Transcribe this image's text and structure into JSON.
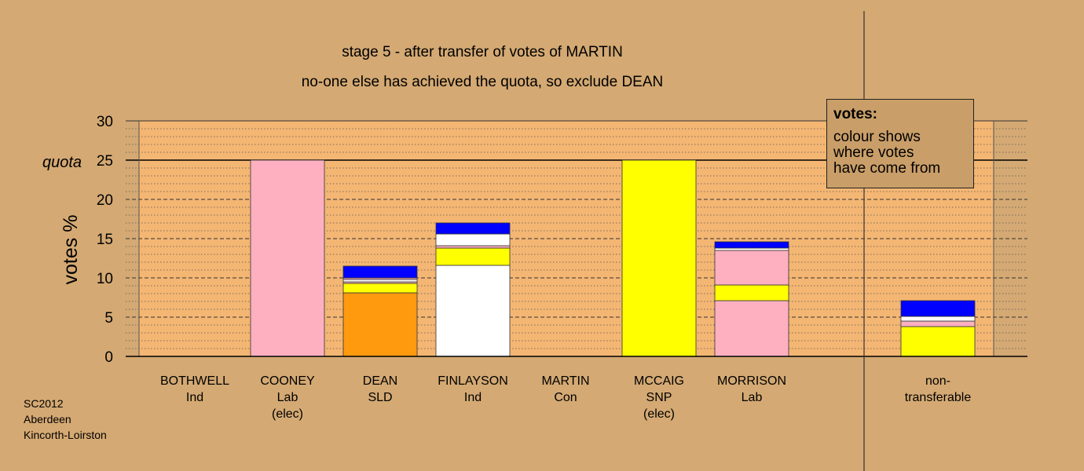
{
  "title": "stage 5 - after transfer of votes of MARTIN",
  "subtitle": "no-one else has achieved the quota, so exclude DEAN",
  "ylabel": "votes %",
  "quota_label": "quota",
  "legend": {
    "title": "votes:",
    "lines": [
      "colour shows",
      "where votes",
      "have come from"
    ]
  },
  "footer": [
    "SC2012",
    "Aberdeen",
    "Kincorth-Loirston"
  ],
  "colors": {
    "background": "#d4a973",
    "plot_area": "#f4b673",
    "Lab": "#ffb0c0",
    "SLD": "#ff9a0e",
    "Ind": "#ffffff",
    "SNP": "#ffff00",
    "Con": "#0000ff"
  },
  "chart_data": {
    "type": "bar",
    "stacked": true,
    "ylim": [
      0,
      30
    ],
    "yticks": [
      0,
      5,
      10,
      15,
      20,
      25,
      30
    ],
    "quota": 25,
    "grid": true,
    "legend_position": "top-right",
    "candidates": [
      {
        "name": "BOTHWELL",
        "party": "Ind",
        "note": "",
        "segments": []
      },
      {
        "name": "COONEY",
        "party": "Lab",
        "note": "(elec)",
        "segments": [
          {
            "source": "Lab",
            "value": 25.0
          }
        ]
      },
      {
        "name": "DEAN",
        "party": "SLD",
        "note": "",
        "segments": [
          {
            "source": "SLD",
            "value": 8.1
          },
          {
            "source": "SNP",
            "value": 1.2
          },
          {
            "source": "Lab",
            "value": 0.2
          },
          {
            "source": "Ind",
            "value": 0.3
          },
          {
            "source": "Lab",
            "value": 0.2
          },
          {
            "source": "Con",
            "value": 1.5
          }
        ]
      },
      {
        "name": "FINLAYSON",
        "party": "Ind",
        "note": "",
        "segments": [
          {
            "source": "Ind",
            "value": 11.6
          },
          {
            "source": "SNP",
            "value": 2.2
          },
          {
            "source": "Lab",
            "value": 0.3
          },
          {
            "source": "Ind",
            "value": 1.5
          },
          {
            "source": "Con",
            "value": 1.4
          }
        ]
      },
      {
        "name": "MARTIN",
        "party": "Con",
        "note": "",
        "segments": []
      },
      {
        "name": "MCCAIG",
        "party": "SNP",
        "note": "(elec)",
        "segments": [
          {
            "source": "SNP",
            "value": 25.0
          }
        ]
      },
      {
        "name": "MORRISON",
        "party": "Lab",
        "note": "",
        "segments": [
          {
            "source": "Lab",
            "value": 7.1
          },
          {
            "source": "SNP",
            "value": 2.0
          },
          {
            "source": "Lab",
            "value": 4.4
          },
          {
            "source": "Ind",
            "value": 0.3
          },
          {
            "source": "Con",
            "value": 0.8
          }
        ]
      }
    ],
    "nontransferable": {
      "label": [
        "non-",
        "transferable"
      ],
      "segments": [
        {
          "source": "SNP",
          "value": 3.8
        },
        {
          "source": "Lab",
          "value": 0.7
        },
        {
          "source": "Ind",
          "value": 0.6
        },
        {
          "source": "Con",
          "value": 2.0
        }
      ]
    }
  }
}
